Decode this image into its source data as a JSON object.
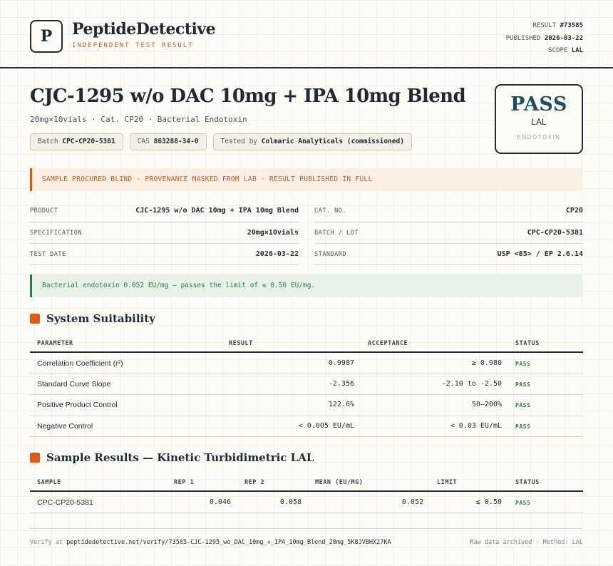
{
  "header": {
    "logo_letter": "P",
    "brand": "PeptideDetective",
    "brand_sub": "INDEPENDENT TEST RESULT",
    "meta": [
      {
        "label": "RESULT",
        "value": "#73585"
      },
      {
        "label": "PUBLISHED",
        "value": "2026-03-22"
      },
      {
        "label": "SCOPE",
        "value": "LAL"
      }
    ]
  },
  "product": {
    "title": "CJC-1295 w/o DAC 10mg + IPA 10mg Blend",
    "subtitle": "20mg×10vials · Cat. CP20 · Bacterial Endotoxin",
    "chips": [
      {
        "label": "Batch",
        "value": "CPC-CP20-5381"
      },
      {
        "label": "CAS",
        "value": "863288-34-0"
      },
      {
        "label": "Tested by",
        "value": "Colmaric Analyticals (commissioned)"
      }
    ]
  },
  "badge": {
    "result": "PASS",
    "scope": "LAL",
    "foot": "ENDOTOXIN"
  },
  "notice": "SAMPLE PROCURED BLIND · PROVENANCE MASKED FROM LAB · RESULT PUBLISHED IN FULL",
  "info": {
    "left": [
      {
        "label": "PRODUCT",
        "value": "CJC-1295 w/o DAC 10mg + IPA 10mg Blend"
      },
      {
        "label": "SPECIFICATION",
        "value": "20mg×10vials"
      },
      {
        "label": "TEST DATE",
        "value": "2026-03-22"
      }
    ],
    "right": [
      {
        "label": "CAT. NO.",
        "value": "CP20"
      },
      {
        "label": "BATCH / LOT",
        "value": "CPC-CP20-5381"
      },
      {
        "label": "STANDARD",
        "value": "USP <85> / EP 2.6.14"
      }
    ]
  },
  "verdict": "Bacterial endotoxin 0.052 EU/mg — passes the limit of ≤ 0.50 EU/mg.",
  "suitability": {
    "title": "System Suitability",
    "headers": [
      "PARAMETER",
      "RESULT",
      "ACCEPTANCE",
      "STATUS"
    ],
    "rows": [
      {
        "parameter": "Correlation Coefficient (r²)",
        "result": "0.9987",
        "acceptance": "≥ 0.980",
        "status": "PASS"
      },
      {
        "parameter": "Standard Curve Slope",
        "result": "-2.356",
        "acceptance": "-2.10 to -2.50",
        "status": "PASS"
      },
      {
        "parameter": "Positive Product Control",
        "result": "122.6%",
        "acceptance": "50–200%",
        "status": "PASS"
      },
      {
        "parameter": "Negative Control",
        "result": "< 0.005 EU/mL",
        "acceptance": "< 0.03 EU/mL",
        "status": "PASS"
      }
    ]
  },
  "samples": {
    "title": "Sample Results — Kinetic Turbidimetric LAL",
    "headers": [
      "SAMPLE",
      "REP 1",
      "REP 2",
      "MEAN (EU/MG)",
      "LIMIT",
      "STATUS"
    ],
    "rows": [
      {
        "sample": "CPC-CP20-5381",
        "rep1": "0.046",
        "rep2": "0.058",
        "mean": "0.052",
        "limit": "≤ 0.50",
        "status": "PASS"
      }
    ]
  },
  "footer": {
    "verify_label": "Verify at",
    "verify_url": "peptidedetective.net/verify/73585-CJC-1295_wo_DAC_10mg_+_IPA_10mg_Blend_20mg_5K8JVBHX27KA",
    "right": "Raw data archived · Method: LAL"
  },
  "colors": {
    "accent": "#c95a1c",
    "pass": "#2e7d44",
    "badge_text": "#1f4d63",
    "ink": "#1f2a33"
  }
}
